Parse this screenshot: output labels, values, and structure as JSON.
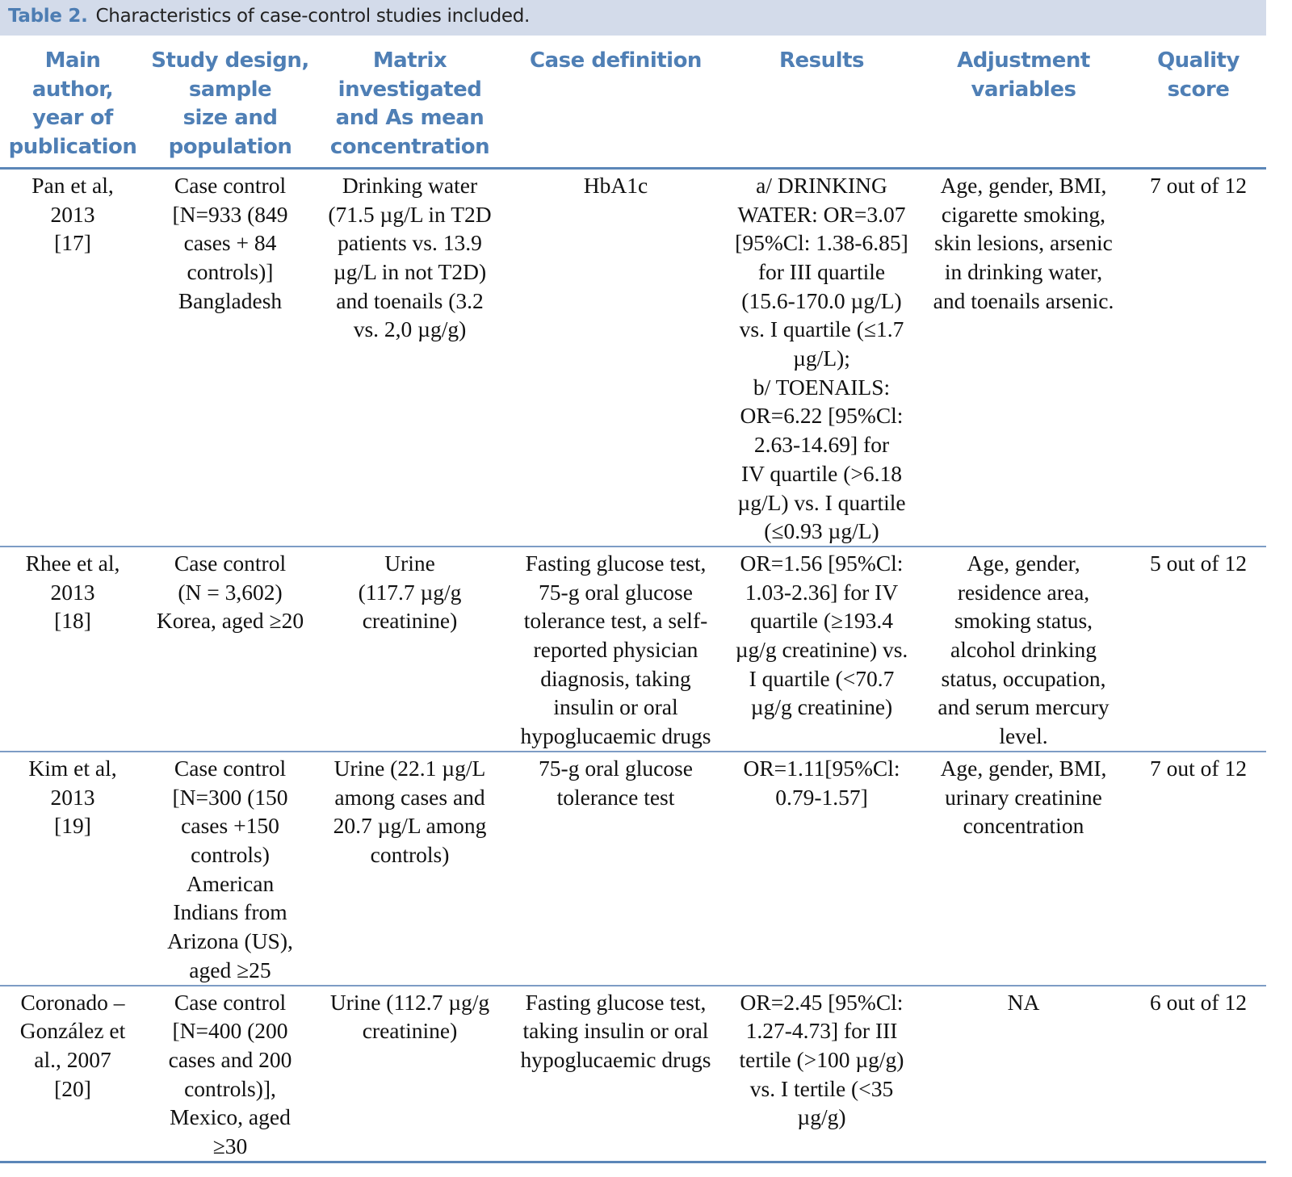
{
  "caption": {
    "label": "Table 2.",
    "text": "Characteristics of case-control studies included."
  },
  "columns": [
    "Main\nauthor,\nyear of\npublication",
    "Study design,\nsample\nsize and\npopulation",
    "Matrix\ninvestigated\nand As mean\nconcentration",
    "Case definition",
    "Results",
    "Adjustment\nvariables",
    "Quality\nscore"
  ],
  "rows": [
    [
      "Pan et al,\n2013\n[17]",
      "Case control\n[N=933 (849\ncases + 84\ncontrols)]\nBangladesh",
      "Drinking water\n(71.5 µg/L in T2D\npatients vs. 13.9\nµg/L in not T2D)\nand toenails (3.2\nvs. 2,0 µg/g)",
      "HbA1c",
      "a/ DRINKING\nWATER: OR=3.07\n[95%Cl: 1.38-6.85]\nfor III quartile\n(15.6-170.0 µg/L)\nvs. I quartile (≤1.7\nµg/L);\nb/ TOENAILS:\nOR=6.22 [95%Cl:\n2.63-14.69] for\nIV quartile (>6.18\nµg/L) vs. I quartile\n(≤0.93 µg/L)",
      "Age, gender, BMI,\ncigarette smoking,\nskin lesions, arsenic\nin drinking water,\nand toenails arsenic.",
      "7 out of 12"
    ],
    [
      "Rhee et al,\n2013\n[18]",
      "Case control\n(N = 3,602)\nKorea, aged ≥20",
      "Urine\n(117.7 µg/g\ncreatinine)",
      "Fasting glucose test,\n75-g oral glucose\ntolerance test, a self-\nreported physician\ndiagnosis, taking\ninsulin or oral\nhypoglucaemic drugs",
      "OR=1.56 [95%Cl:\n1.03-2.36] for IV\nquartile (≥193.4\nµg/g creatinine) vs.\nI quartile (<70.7\nµg/g creatinine)",
      "Age, gender,\nresidence area,\nsmoking status,\nalcohol drinking\nstatus, occupation,\nand serum mercury\nlevel.",
      "5 out of 12"
    ],
    [
      "Kim et al,\n2013\n[19]",
      "Case control\n[N=300 (150\ncases +150\ncontrols)\nAmerican\nIndians from\nArizona (US),\naged ≥25",
      "Urine (22.1 µg/L\namong cases and\n20.7 µg/L among\ncontrols)",
      "75-g oral glucose\ntolerance test",
      "OR=1.11[95%Cl:\n0.79-1.57]",
      "Age, gender, BMI,\nurinary creatinine\nconcentration",
      "7 out of 12"
    ],
    [
      "Coronado –\nGonzález et\nal., 2007\n[20]",
      "Case control\n[N=400 (200\ncases and 200\ncontrols)],\nMexico, aged\n≥30",
      "Urine (112.7 µg/g\ncreatinine)",
      "Fasting glucose test,\ntaking insulin or oral\nhypoglucaemic drugs",
      "OR=2.45 [95%Cl:\n1.27-4.73] for III\ntertile (>100 µg/g)\nvs. I tertile (<35\nµg/g)",
      "NA",
      "6 out of 12"
    ]
  ],
  "colors": {
    "header_text": "#4f7fb5",
    "caption_bg": "#d3dbea",
    "rule": "#5b86b8"
  }
}
